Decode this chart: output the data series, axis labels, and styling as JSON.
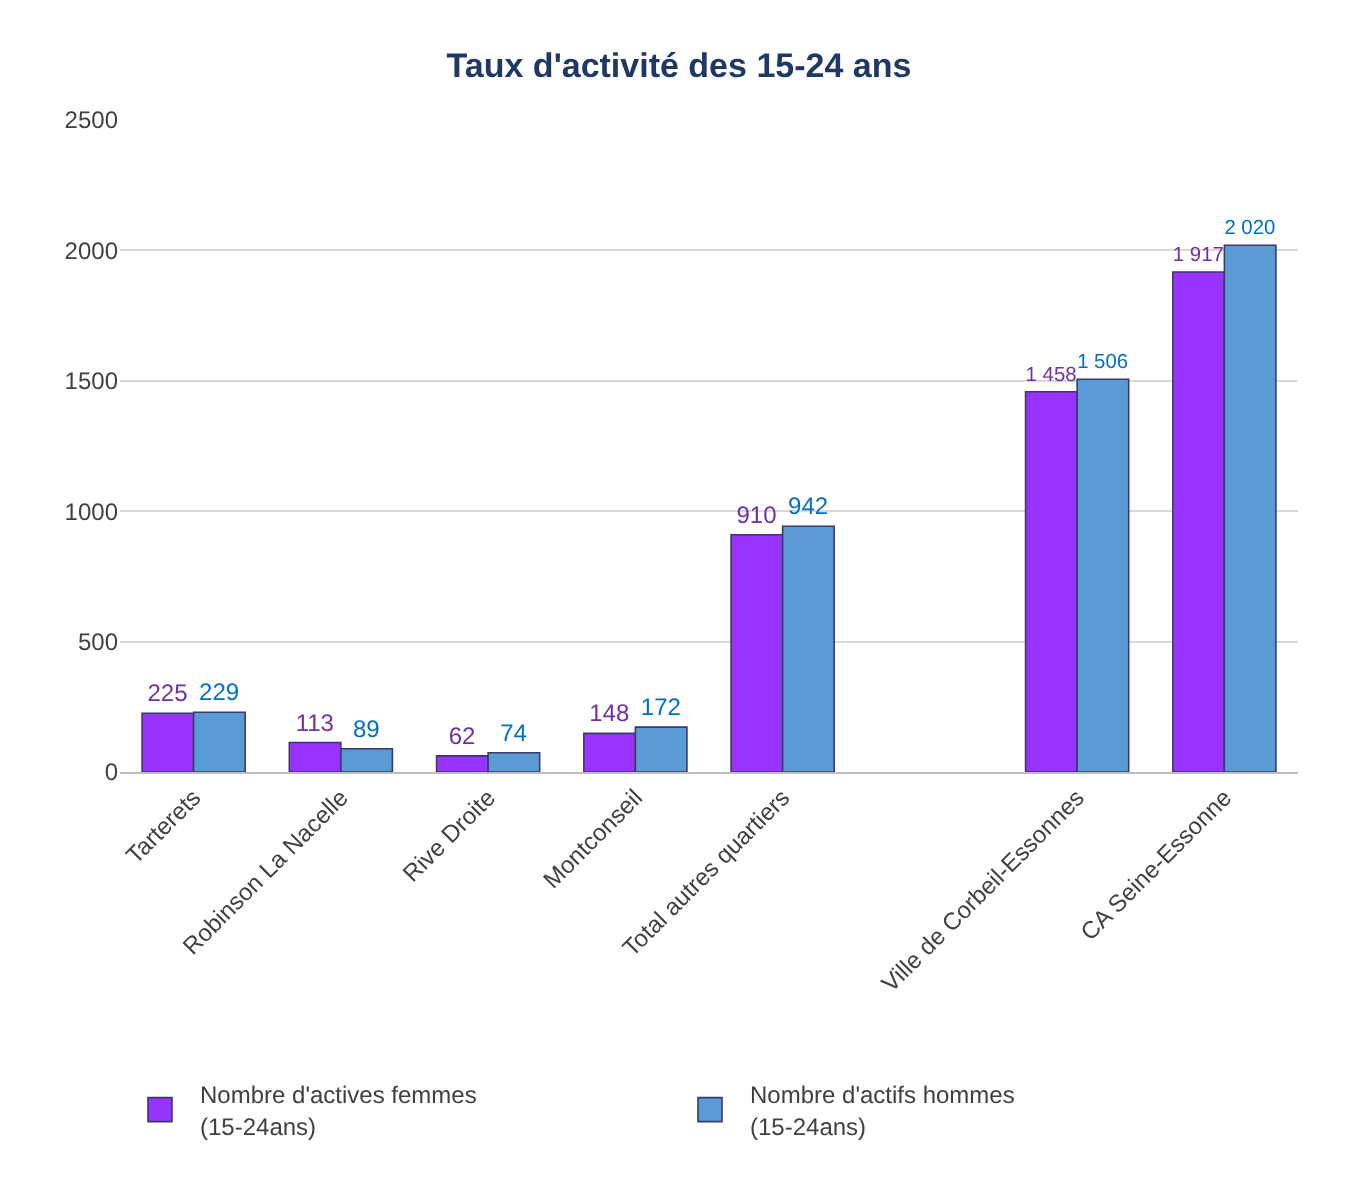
{
  "chart_data": {
    "type": "bar",
    "title": "Taux d'activité des 15-24 ans",
    "categories": [
      "Tarterets",
      "Robinson La Nacelle",
      "Rive Droite",
      "Montconseil",
      "Total autres quartiers",
      null,
      "Ville de Corbeil-Essonnes",
      "CA Seine-Essonne"
    ],
    "series": [
      {
        "name": "Nombre d'actives femmes\n(15-24ans)",
        "color": "#9933ff",
        "values": [
          225,
          113,
          62,
          148,
          910,
          null,
          1458,
          1917
        ],
        "value_labels": [
          "225",
          "113",
          "62",
          "148",
          "910",
          null,
          "1 458",
          "1 917"
        ]
      },
      {
        "name": "Nombre d'actifs hommes\n(15-24ans)",
        "color": "#5b9bd5",
        "values": [
          229,
          89,
          74,
          172,
          942,
          null,
          1506,
          2020
        ],
        "value_labels": [
          "229",
          "89",
          "74",
          "172",
          "942",
          null,
          "1 506",
          "2 020"
        ]
      }
    ],
    "ylim": [
      0,
      2500
    ],
    "yticks": [
      0,
      500,
      1000,
      1500,
      2000,
      2500
    ],
    "grid": "y",
    "legend": "bottom left"
  }
}
